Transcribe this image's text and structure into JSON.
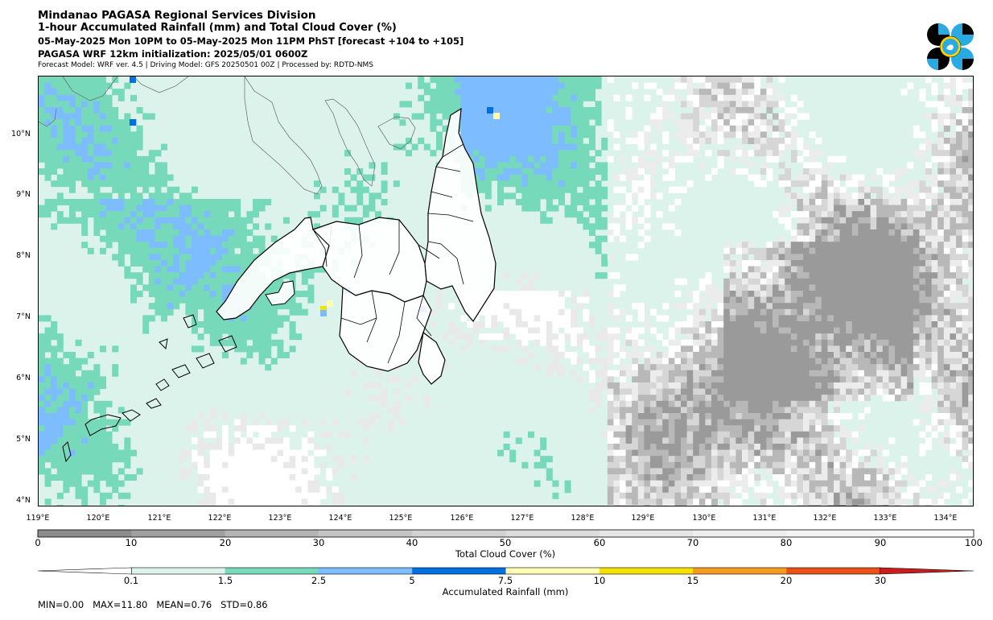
{
  "header": {
    "line1": "Mindanao PAGASA Regional Services Division",
    "line2": "1-hour Accumulated Rainfall (mm) and Total Cloud Cover (%)",
    "line3": "05-May-2025 Mon 10PM to 05-May-2025 Mon 11PM PhST [forecast +104 to +105]",
    "line4": "PAGASA WRF 12km initialization: 2025/05/01 0600Z",
    "line5": "Forecast Model: WRF ver. 4.5 | Driving Model: GFS 20250501 00Z | Processed by: RDTD-NMS"
  },
  "logo": {
    "icon": "pagasa-logo",
    "colors": [
      "#000000",
      "#29abe2",
      "#ffd200"
    ]
  },
  "map": {
    "lat_labels": [
      "10°N",
      "9°N",
      "8°N",
      "7°N",
      "6°N",
      "5°N",
      "4°N"
    ],
    "lat_values": [
      10,
      9,
      8,
      7,
      6,
      5,
      4
    ],
    "lon_labels": [
      "119°E",
      "120°E",
      "121°E",
      "122°E",
      "123°E",
      "124°E",
      "125°E",
      "126°E",
      "127°E",
      "128°E",
      "129°E",
      "130°E",
      "131°E",
      "132°E",
      "133°E",
      "134°E"
    ],
    "lon_values": [
      119,
      120,
      121,
      122,
      123,
      124,
      125,
      126,
      127,
      128,
      129,
      130,
      131,
      132,
      133,
      134
    ],
    "extent": {
      "lon_min": 119.0,
      "lon_max": 134.45,
      "lat_min": 3.9,
      "lat_max": 11.0
    }
  },
  "cloud_colorbar": {
    "title": "Total Cloud Cover (%)",
    "ticks": [
      "0",
      "10",
      "20",
      "30",
      "40",
      "50",
      "60",
      "70",
      "80",
      "90",
      "100"
    ],
    "bins": [
      0,
      10,
      20,
      30,
      40,
      50,
      60,
      70,
      80,
      90,
      100
    ],
    "colors": [
      "#8c8c8c",
      "#a0a0a0",
      "#b4b4b4",
      "#c4c4c4",
      "#d2d2d2",
      "#dcdcdc",
      "#e6e6e6",
      "#eeeeee",
      "#f4f4f4",
      "#fafafa"
    ]
  },
  "rain_colorbar": {
    "title": "Accumulated Rainfall (mm)",
    "ticks": [
      "0.1",
      "1.5",
      "2.5",
      "5",
      "7.5",
      "10",
      "15",
      "20",
      "30"
    ],
    "colors": [
      "#dcf3ec",
      "#76d9b9",
      "#7cbcff",
      "#0070e0",
      "#ffffb4",
      "#f5e100",
      "#f59b1e",
      "#eb5014",
      "#c81e1e"
    ]
  },
  "stats": {
    "min": "0.00",
    "max": "11.80",
    "mean": "0.76",
    "std": "0.86",
    "text": "MIN=0.00   MAX=11.80   MEAN=0.76   STD=0.86"
  }
}
